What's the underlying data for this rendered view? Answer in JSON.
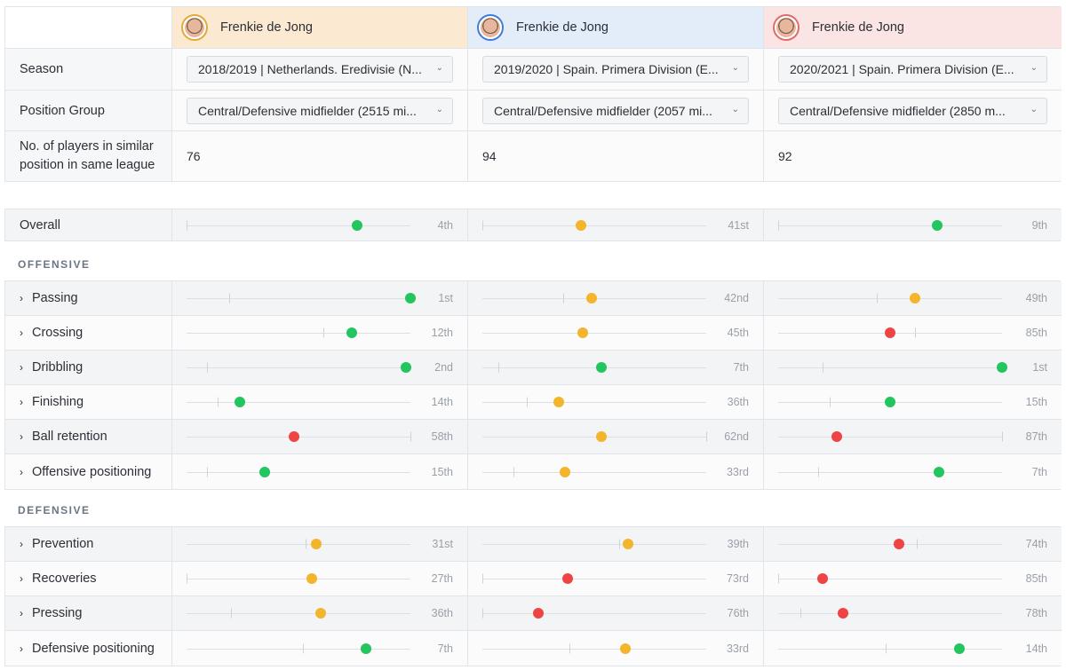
{
  "players": [
    {
      "name": "Frenkie de Jong",
      "header_bg": "#fbe9d2",
      "ring": "#e3a93a",
      "season": "2018/2019 | Netherlands. Eredivisie (N...",
      "position": "Central/Defensive midfielder (2515 mi...",
      "count": "76"
    },
    {
      "name": "Frenkie de Jong",
      "header_bg": "#e3edf9",
      "ring": "#3f7ed6",
      "season": "2019/2020 | Spain. Primera Division (E...",
      "position": "Central/Defensive midfielder (2057 mi...",
      "count": "94"
    },
    {
      "name": "Frenkie de Jong",
      "header_bg": "#fbe4e4",
      "ring": "#e06a6a",
      "season": "2020/2021 | Spain. Primera Division (E...",
      "position": "Central/Defensive midfielder (2850 m...",
      "count": "92"
    }
  ],
  "labels": {
    "season": "Season",
    "position": "Position Group",
    "count_line1": "No. of players in similar",
    "count_line2": "position in same league",
    "offensive": "OFFENSIVE",
    "defensive": "DEFENSIVE"
  },
  "colors": {
    "good": "#22c55e",
    "mid": "#f2b52b",
    "bad": "#ef4444"
  },
  "overall": {
    "label": "Overall",
    "values": [
      {
        "rank": "4th",
        "pos": 0.76,
        "avg": 0.0,
        "status": "good"
      },
      {
        "rank": "41st",
        "pos": 0.44,
        "avg": 0.0,
        "status": "mid"
      },
      {
        "rank": "9th",
        "pos": 0.71,
        "avg": 0.0,
        "status": "good"
      }
    ]
  },
  "offensive": [
    {
      "label": "Passing",
      "values": [
        {
          "rank": "1st",
          "pos": 1.0,
          "avg": 0.19,
          "status": "good"
        },
        {
          "rank": "42nd",
          "pos": 0.49,
          "avg": 0.36,
          "status": "mid"
        },
        {
          "rank": "49th",
          "pos": 0.61,
          "avg": 0.44,
          "status": "mid"
        }
      ]
    },
    {
      "label": "Crossing",
      "values": [
        {
          "rank": "12th",
          "pos": 0.74,
          "avg": 0.61,
          "status": "good"
        },
        {
          "rank": "45th",
          "pos": 0.45,
          "avg": 0.45,
          "status": "mid"
        },
        {
          "rank": "85th",
          "pos": 0.5,
          "avg": 0.61,
          "status": "bad"
        }
      ]
    },
    {
      "label": "Dribbling",
      "values": [
        {
          "rank": "2nd",
          "pos": 0.98,
          "avg": 0.09,
          "status": "good"
        },
        {
          "rank": "7th",
          "pos": 0.53,
          "avg": 0.07,
          "status": "good"
        },
        {
          "rank": "1st",
          "pos": 1.0,
          "avg": 0.2,
          "status": "good"
        }
      ]
    },
    {
      "label": "Finishing",
      "values": [
        {
          "rank": "14th",
          "pos": 0.24,
          "avg": 0.14,
          "status": "good"
        },
        {
          "rank": "36th",
          "pos": 0.34,
          "avg": 0.2,
          "status": "mid"
        },
        {
          "rank": "15th",
          "pos": 0.5,
          "avg": 0.23,
          "status": "good"
        }
      ]
    },
    {
      "label": "Ball retention",
      "values": [
        {
          "rank": "58th",
          "pos": 0.48,
          "avg": 1.0,
          "status": "bad"
        },
        {
          "rank": "62nd",
          "pos": 0.53,
          "avg": 1.0,
          "status": "mid"
        },
        {
          "rank": "87th",
          "pos": 0.26,
          "avg": 1.0,
          "status": "bad"
        }
      ]
    },
    {
      "label": "Offensive positioning",
      "values": [
        {
          "rank": "15th",
          "pos": 0.35,
          "avg": 0.09,
          "status": "good"
        },
        {
          "rank": "33rd",
          "pos": 0.37,
          "avg": 0.14,
          "status": "mid"
        },
        {
          "rank": "7th",
          "pos": 0.72,
          "avg": 0.18,
          "status": "good"
        }
      ]
    }
  ],
  "defensive": [
    {
      "label": "Prevention",
      "values": [
        {
          "rank": "31st",
          "pos": 0.58,
          "avg": 0.53,
          "status": "mid"
        },
        {
          "rank": "39th",
          "pos": 0.65,
          "avg": 0.61,
          "status": "mid"
        },
        {
          "rank": "74th",
          "pos": 0.54,
          "avg": 0.62,
          "status": "bad"
        }
      ]
    },
    {
      "label": "Recoveries",
      "values": [
        {
          "rank": "27th",
          "pos": 0.56,
          "avg": 0.0,
          "status": "mid"
        },
        {
          "rank": "73rd",
          "pos": 0.38,
          "avg": 0.0,
          "status": "bad"
        },
        {
          "rank": "85th",
          "pos": 0.2,
          "avg": 0.0,
          "status": "bad"
        }
      ]
    },
    {
      "label": "Pressing",
      "values": [
        {
          "rank": "36th",
          "pos": 0.6,
          "avg": 0.2,
          "status": "mid"
        },
        {
          "rank": "76th",
          "pos": 0.25,
          "avg": 0.0,
          "status": "bad"
        },
        {
          "rank": "78th",
          "pos": 0.29,
          "avg": 0.1,
          "status": "bad"
        }
      ]
    },
    {
      "label": "Defensive positioning",
      "values": [
        {
          "rank": "7th",
          "pos": 0.8,
          "avg": 0.52,
          "status": "good"
        },
        {
          "rank": "33rd",
          "pos": 0.64,
          "avg": 0.39,
          "status": "mid"
        },
        {
          "rank": "14th",
          "pos": 0.81,
          "avg": 0.48,
          "status": "good"
        }
      ]
    }
  ]
}
